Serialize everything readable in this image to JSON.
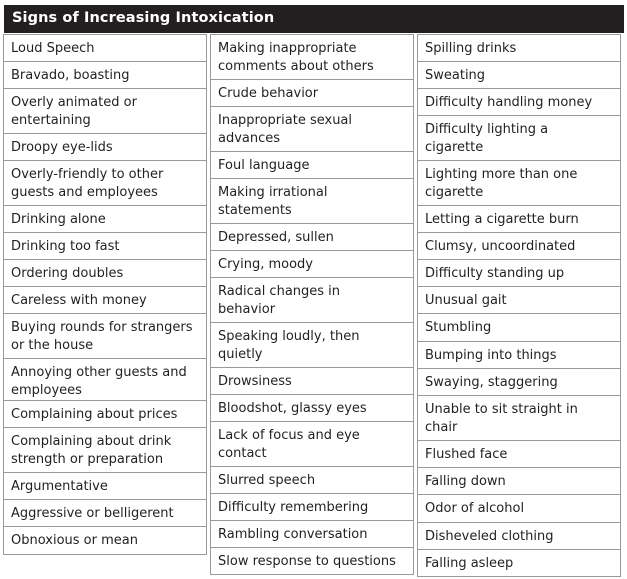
{
  "header": {
    "title": "Signs of Increasing Intoxication"
  },
  "columns": [
    [
      "Loud Speech",
      "Bravado, boasting",
      "Overly animated or\nentertaining",
      "Droopy eye-lids",
      "Overly-friendly to other\nguests and employees",
      "Drinking alone",
      "Drinking too fast",
      "Ordering doubles",
      "Careless with money",
      "Buying rounds for strangers\nor the house",
      "Annoying other guests and\nemployees",
      "Complaining about prices",
      "Complaining about drink\nstrength or preparation",
      "Argumentative",
      "Aggressive or belligerent",
      "Obnoxious or mean"
    ],
    [
      "Making inappropriate\ncomments about others",
      "Crude behavior",
      "Inappropriate sexual\nadvances",
      "Foul language",
      "Making irrational\nstatements",
      "Depressed, sullen",
      "Crying, moody",
      "Radical changes in\nbehavior",
      "Speaking loudly, then\nquietly",
      "Drowsiness",
      "Bloodshot, glassy eyes",
      "Lack of focus and eye\ncontact",
      "Slurred speech",
      "Difficulty remembering",
      "Rambling conversation",
      "Slow response to questions"
    ],
    [
      "Spilling drinks",
      "Sweating",
      "Difficulty handling money",
      "Difficulty lighting a\ncigarette",
      "Lighting more than one\ncigarette",
      "Letting a cigarette burn",
      "Clumsy, uncoordinated",
      "Difficulty standing up",
      "Unusual gait",
      "Stumbling",
      "Bumping into things",
      "Swaying, staggering",
      "Unable to sit straight in\nchair",
      "Flushed face",
      "Falling down",
      "Odor of alcohol",
      "Disheveled clothing",
      "Falling asleep"
    ]
  ]
}
